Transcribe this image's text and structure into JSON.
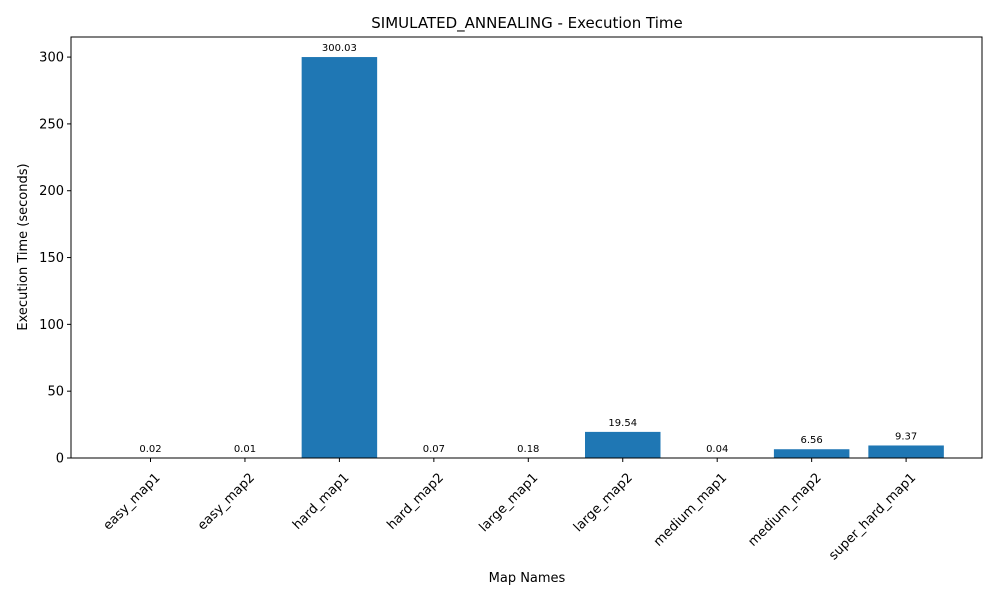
{
  "chart_data": {
    "type": "bar",
    "title": "SIMULATED_ANNEALING - Execution Time",
    "xlabel": "Map Names",
    "ylabel": "Execution Time (seconds)",
    "categories": [
      "easy_map1",
      "easy_map2",
      "hard_map1",
      "hard_map2",
      "large_map1",
      "large_map2",
      "medium_map1",
      "medium_map2",
      "super_hard_map1"
    ],
    "values": [
      0.02,
      0.01,
      300.03,
      0.07,
      0.18,
      19.54,
      0.04,
      6.56,
      9.37
    ],
    "value_labels": [
      "0.02",
      "0.01",
      "300.03",
      "0.07",
      "0.18",
      "19.54",
      "0.04",
      "6.56",
      "9.37"
    ],
    "ylim": [
      0,
      315.0315
    ],
    "yticks": [
      0,
      50,
      100,
      150,
      200,
      250,
      300
    ],
    "grid": false,
    "legend": "none",
    "bar_color": "#1f77b4",
    "xtick_rotation_deg": 45
  }
}
